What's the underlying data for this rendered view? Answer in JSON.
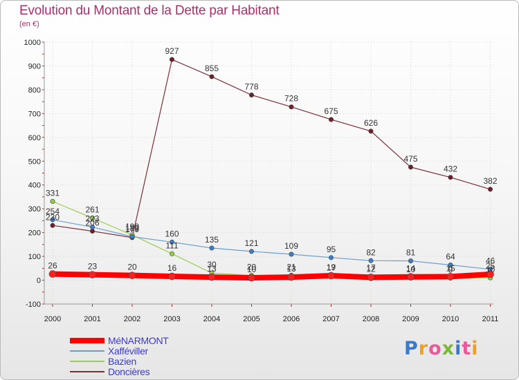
{
  "title": "Evolution du Montant de la Dette par Habitant",
  "subtitle": "(en €)",
  "logo_text": "Proxiti",
  "logo_colors": [
    "#3a78c8",
    "#f0a020",
    "#e85a9a",
    "#7ab838",
    "#3a78c8",
    "#e85a9a",
    "#f0a020"
  ],
  "chart_data": {
    "type": "line",
    "x": [
      "2000",
      "2001",
      "2002",
      "2003",
      "2004",
      "2005",
      "2006",
      "2007",
      "2008",
      "2009",
      "2010",
      "2011"
    ],
    "ylim": [
      -100,
      1000
    ],
    "yticks": [
      -100,
      0,
      100,
      200,
      300,
      400,
      500,
      600,
      700,
      800,
      900,
      1000
    ],
    "grid": true,
    "legend_position": "bottom-left",
    "series": [
      {
        "name": "MéNARMONT",
        "color": "#ff0000",
        "marker": "#ff2020",
        "width": 8,
        "values": [
          26,
          23,
          20,
          16,
          13,
          10,
          13,
          19,
          12,
          14,
          15,
          25
        ],
        "labels": [
          "26",
          "23",
          "20",
          "16",
          "13",
          "10",
          "13",
          "19",
          "12",
          "14",
          "15",
          "25"
        ]
      },
      {
        "name": "Xafféviller",
        "color": "#6a9ed0",
        "marker": "#3d7fc4",
        "width": 1.2,
        "values": [
          254,
          223,
          183,
          160,
          135,
          121,
          109,
          95,
          82,
          81,
          64,
          46
        ],
        "labels": [
          "254",
          "223",
          "183",
          "160",
          "135",
          "121",
          "109",
          "95",
          "82",
          "81",
          "64",
          "46"
        ]
      },
      {
        "name": "Bazien",
        "color": "#9acd50",
        "marker": "#8ed040",
        "width": 1.2,
        "values": [
          331,
          261,
          190,
          111,
          30,
          20,
          21,
          17,
          17,
          10,
          9,
          10
        ],
        "labels": [
          "331",
          "261",
          "190",
          "111",
          "30",
          "20",
          "21",
          "17",
          "17",
          "10",
          "9",
          "10"
        ]
      },
      {
        "name": "Doncières",
        "color": "#7a2e38",
        "marker": "#6e1f2c",
        "width": 1.2,
        "values": [
          230,
          206,
          179,
          927,
          855,
          778,
          728,
          675,
          626,
          475,
          432,
          382
        ],
        "labels": [
          "230",
          "206",
          "179",
          "927",
          "855",
          "778",
          "728",
          "675",
          "626",
          "475",
          "432",
          "382"
        ]
      }
    ]
  }
}
